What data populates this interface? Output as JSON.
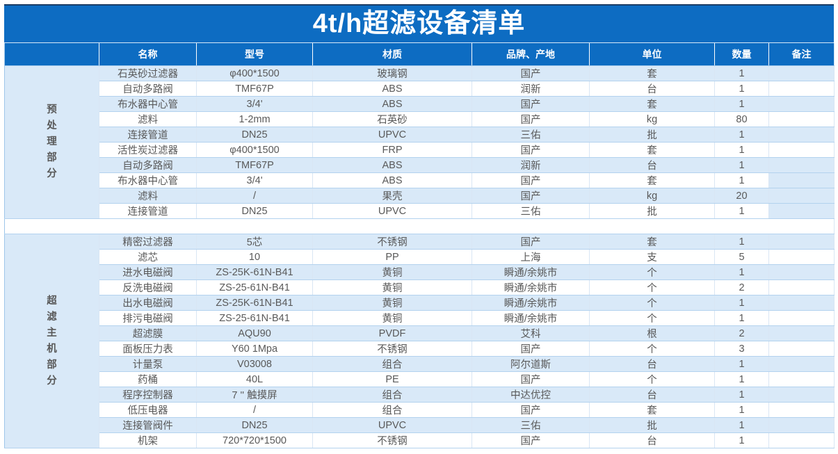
{
  "title": "4t/h超滤设备清单",
  "columns": [
    "",
    "名称",
    "型号",
    "材质",
    "品牌、产地",
    "单位",
    "数量",
    "备注"
  ],
  "colors": {
    "header_blue": "#0D6CC2",
    "stripe_blue": "#D9E9F8",
    "row_white": "#FFFFFF",
    "text_gray": "#595959",
    "grid_line": "#B3D2EE",
    "title_text": "#FFFFFF"
  },
  "sections": [
    {
      "label": "预处理部分",
      "rows": [
        {
          "name": "石英砂过滤器",
          "model": "φ400*1500",
          "material": "玻璃钢",
          "brand": "国产",
          "unit": "套",
          "qty": "1",
          "remark": "",
          "remark_tint": false
        },
        {
          "name": "自动多路阀",
          "model": "TMF67P",
          "material": "ABS",
          "brand": "润新",
          "unit": "台",
          "qty": "1",
          "remark": "",
          "remark_tint": false
        },
        {
          "name": "布水器中心管",
          "model": "3/4'",
          "material": "ABS",
          "brand": "国产",
          "unit": "套",
          "qty": "1",
          "remark": "",
          "remark_tint": false
        },
        {
          "name": "滤料",
          "model": "1-2mm",
          "material": "石英砂",
          "brand": "国产",
          "unit": "kg",
          "qty": "80",
          "remark": "",
          "remark_tint": false
        },
        {
          "name": "连接管道",
          "model": "DN25",
          "material": "UPVC",
          "brand": "三佑",
          "unit": "批",
          "qty": "1",
          "remark": "",
          "remark_tint": false
        },
        {
          "name": "活性炭过滤器",
          "model": "φ400*1500",
          "material": "FRP",
          "brand": "国产",
          "unit": "套",
          "qty": "1",
          "remark": "",
          "remark_tint": false
        },
        {
          "name": "自动多路阀",
          "model": "TMF67P",
          "material": "ABS",
          "brand": "润新",
          "unit": "台",
          "qty": "1",
          "remark": "",
          "remark_tint": false
        },
        {
          "name": "布水器中心管",
          "model": "3/4'",
          "material": "ABS",
          "brand": "国产",
          "unit": "套",
          "qty": "1",
          "remark": "",
          "remark_tint": true
        },
        {
          "name": "滤料",
          "model": "/",
          "material": "果壳",
          "brand": "国产",
          "unit": "kg",
          "qty": "20",
          "remark": "",
          "remark_tint": true
        },
        {
          "name": "连接管道",
          "model": "DN25",
          "material": "UPVC",
          "brand": "三佑",
          "unit": "批",
          "qty": "1",
          "remark": "",
          "remark_tint": true
        }
      ]
    },
    {
      "label": "超滤主机部分",
      "rows": [
        {
          "name": "精密过滤器",
          "model": "5芯",
          "material": "不锈钢",
          "brand": "国产",
          "unit": "套",
          "qty": "1",
          "remark": "",
          "remark_tint": false
        },
        {
          "name": "滤芯",
          "model": "10",
          "material": "PP",
          "brand": "上海",
          "unit": "支",
          "qty": "5",
          "remark": "",
          "remark_tint": false
        },
        {
          "name": "进水电磁阀",
          "model": "ZS-25K-61N-B41",
          "material": "黄铜",
          "brand": "瞬通/余姚市",
          "unit": "个",
          "qty": "1",
          "remark": "",
          "remark_tint": false
        },
        {
          "name": "反洗电磁阀",
          "model": "ZS-25-61N-B41",
          "material": "黄铜",
          "brand": "瞬通/余姚市",
          "unit": "个",
          "qty": "2",
          "remark": "",
          "remark_tint": false
        },
        {
          "name": "出水电磁阀",
          "model": "ZS-25K-61N-B41",
          "material": "黄铜",
          "brand": "瞬通/余姚市",
          "unit": "个",
          "qty": "1",
          "remark": "",
          "remark_tint": false
        },
        {
          "name": "排污电磁阀",
          "model": "ZS-25-61N-B41",
          "material": "黄铜",
          "brand": "瞬通/余姚市",
          "unit": "个",
          "qty": "1",
          "remark": "",
          "remark_tint": false
        },
        {
          "name": "超滤膜",
          "model": "AQU90",
          "material": "PVDF",
          "brand": "艾科",
          "unit": "根",
          "qty": "2",
          "remark": "",
          "remark_tint": false
        },
        {
          "name": "面板压力表",
          "model": "Y60 1Mpa",
          "material": "不锈钢",
          "brand": "国产",
          "unit": "个",
          "qty": "3",
          "remark": "",
          "remark_tint": false
        },
        {
          "name": "计量泵",
          "model": "V03008",
          "material": "组合",
          "brand": "阿尔道斯",
          "unit": "台",
          "qty": "1",
          "remark": "",
          "remark_tint": false
        },
        {
          "name": "药桶",
          "model": "40L",
          "material": "PE",
          "brand": "国产",
          "unit": "个",
          "qty": "1",
          "remark": "",
          "remark_tint": false
        },
        {
          "name": "程序控制器",
          "model": "7 '' 触摸屏",
          "material": "组合",
          "brand": "中达优控",
          "unit": "台",
          "qty": "1",
          "remark": "",
          "remark_tint": false
        },
        {
          "name": "低压电器",
          "model": "/",
          "material": "组合",
          "brand": "国产",
          "unit": "套",
          "qty": "1",
          "remark": "",
          "remark_tint": false
        },
        {
          "name": "连接管阀件",
          "model": "DN25",
          "material": "UPVC",
          "brand": "三佑",
          "unit": "批",
          "qty": "1",
          "remark": "",
          "remark_tint": false
        },
        {
          "name": "机架",
          "model": "720*720*1500",
          "material": "不锈钢",
          "brand": "国产",
          "unit": "台",
          "qty": "1",
          "remark": "",
          "remark_tint": false
        }
      ]
    }
  ]
}
